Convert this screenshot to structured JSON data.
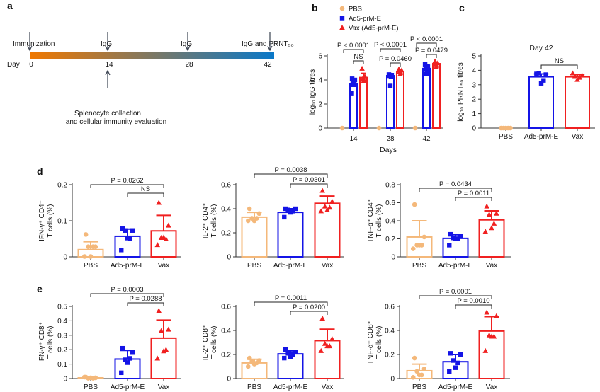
{
  "panel_letters": [
    "a",
    "b",
    "c",
    "d",
    "e"
  ],
  "colors": {
    "PBS": "#f4b87a",
    "Ad5-prM-E": "#1414e6",
    "Vax": "#f02020",
    "timeline_start": "#f07800",
    "timeline_end": "#0a78c8"
  },
  "timeline": {
    "day_label": "Day",
    "days": [
      "0",
      "14",
      "28",
      "42"
    ],
    "top_events": [
      "Immunization",
      "IgG",
      "IgG",
      "IgG and PRNT₅₀"
    ],
    "bottom_event": [
      "Splenocyte collection",
      "and cellular immunity evaluation"
    ]
  },
  "chart_data": [
    {
      "panel": "b",
      "type": "bar",
      "legend": [
        "PBS",
        "Ad5-prM-E",
        "Vax (Ad5-prM-E)"
      ],
      "legend_placement": "top",
      "categories": [
        "14",
        "28",
        "42"
      ],
      "xlabel": "Days",
      "ylabel": "log₁₀ IgG titres",
      "ylim": [
        0,
        6
      ],
      "yticks": [
        "0",
        "2",
        "4",
        "6"
      ],
      "series": [
        {
          "name": "PBS",
          "marker": "circle",
          "means": [
            0,
            0,
            0
          ],
          "sd": [
            0,
            0,
            0
          ],
          "points": [
            [
              0,
              0,
              0,
              0,
              0
            ],
            [
              0,
              0,
              0,
              0,
              0
            ],
            [
              0,
              0,
              0,
              0,
              0
            ]
          ]
        },
        {
          "name": "Ad5-prM-E",
          "marker": "square",
          "means": [
            3.7,
            4.35,
            4.95
          ],
          "sd": [
            0.35,
            0.1,
            0.3
          ],
          "points": [
            [
              4.1,
              4.0,
              3.9,
              3.8,
              3.6,
              2.9
            ],
            [
              4.45,
              4.4,
              4.35,
              4.3,
              3.5
            ],
            [
              5.3,
              5.1,
              4.9,
              4.7,
              4.5
            ]
          ]
        },
        {
          "name": "Vax (Ad5-prM-E)",
          "marker": "triangle",
          "means": [
            4.2,
            4.7,
            5.35
          ],
          "sd": [
            0.35,
            0.15,
            0.15
          ],
          "points": [
            [
              4.95,
              4.3,
              4.1,
              4.0,
              3.9
            ],
            [
              4.9,
              4.8,
              4.7,
              4.6,
              4.5
            ],
            [
              5.55,
              5.4,
              5.3,
              5.2,
              5.1
            ]
          ]
        }
      ],
      "significance": [
        {
          "group": 0,
          "from": 0,
          "to": 2,
          "label": "P < 0.0001"
        },
        {
          "group": 0,
          "from": 1,
          "to": 2,
          "label": "NS"
        },
        {
          "group": 1,
          "from": 0,
          "to": 2,
          "label": "P < 0.0001"
        },
        {
          "group": 1,
          "from": 1,
          "to": 2,
          "label": "P = 0.0460"
        },
        {
          "group": 2,
          "from": 0,
          "to": 2,
          "label": "P < 0.0001"
        },
        {
          "group": 2,
          "from": 1,
          "to": 2,
          "label": "P = 0.0479"
        }
      ]
    },
    {
      "panel": "c",
      "type": "bar",
      "title": "Day 42",
      "categories": [
        "PBS",
        "Ad5-prM-E",
        "Vax"
      ],
      "ylabel": "log₁₀ PRNT₅₀ titres",
      "ylim": [
        0,
        5
      ],
      "yticks": [
        "0",
        "1",
        "2",
        "3",
        "4",
        "5"
      ],
      "means": [
        0,
        3.55,
        3.55
      ],
      "sd": [
        0,
        0.2,
        0.15
      ],
      "points": [
        [
          0,
          0,
          0,
          0,
          0
        ],
        [
          3.75,
          3.7,
          3.8,
          3.3,
          3.1
        ],
        [
          3.8,
          3.65,
          3.6,
          3.5,
          3.35
        ]
      ],
      "significance": [
        {
          "from": 1,
          "to": 2,
          "label": "NS"
        }
      ]
    },
    {
      "panel": "d",
      "type": "bar",
      "categories": [
        "PBS",
        "Ad5-prM-E",
        "Vax"
      ],
      "ylabel": [
        "IFN-γ⁺ CD4⁺",
        "T cells (%)"
      ],
      "ylim": [
        0,
        0.2
      ],
      "yticks": [
        "0",
        "0.1",
        "0.2"
      ],
      "means": [
        0.02,
        0.057,
        0.072
      ],
      "sd": [
        0.022,
        0.02,
        0.043
      ],
      "points": [
        [
          0.062,
          0.028,
          0.028,
          0.028,
          0.001,
          0.001
        ],
        [
          0.078,
          0.073,
          0.073,
          0.05,
          0.052,
          0.019
        ],
        [
          0.15,
          0.087,
          0.053,
          0.049,
          0.054,
          0.033
        ]
      ],
      "significance": [
        {
          "from": 0,
          "to": 2,
          "label": "P = 0.0262"
        },
        {
          "from": 1,
          "to": 2,
          "label": "NS"
        }
      ]
    },
    {
      "panel": "d",
      "type": "bar",
      "categories": [
        "PBS",
        "Ad5-prM-E",
        "Vax"
      ],
      "ylabel": [
        "IL-2⁺ CD4⁺",
        "T cells (%)"
      ],
      "ylim": [
        0,
        0.6
      ],
      "yticks": [
        "0",
        "0.2",
        "0.4",
        "0.6"
      ],
      "means": [
        0.33,
        0.37,
        0.445
      ],
      "sd": [
        0.04,
        0.03,
        0.06
      ],
      "points": [
        [
          0.4,
          0.36,
          0.32,
          0.32,
          0.3,
          0.3
        ],
        [
          0.4,
          0.4,
          0.39,
          0.38,
          0.37,
          0.33
        ],
        [
          0.55,
          0.46,
          0.42,
          0.41,
          0.39,
          0.38
        ]
      ],
      "significance": [
        {
          "from": 0,
          "to": 2,
          "label": "P = 0.0038"
        },
        {
          "from": 1,
          "to": 2,
          "label": "P = 0.0301"
        }
      ]
    },
    {
      "panel": "d",
      "type": "bar",
      "categories": [
        "PBS",
        "Ad5-prM-E",
        "Vax"
      ],
      "ylabel": [
        "TNF-α⁺ CD4⁺",
        "T cells (%)"
      ],
      "ylim": [
        0,
        0.8
      ],
      "yticks": [
        "0",
        "0.2",
        "0.4",
        "0.6",
        "0.8"
      ],
      "means": [
        0.22,
        0.205,
        0.41
      ],
      "sd": [
        0.18,
        0.04,
        0.1
      ],
      "points": [
        [
          0.58,
          0.22,
          0.13,
          0.13,
          0.13,
          0.09
        ],
        [
          0.25,
          0.23,
          0.21,
          0.2,
          0.2,
          0.13
        ],
        [
          0.56,
          0.48,
          0.47,
          0.37,
          0.32,
          0.28
        ]
      ],
      "significance": [
        {
          "from": 0,
          "to": 2,
          "label": "P = 0.0434"
        },
        {
          "from": 1,
          "to": 2,
          "label": "P = 0.0011"
        }
      ]
    },
    {
      "panel": "e",
      "type": "bar",
      "categories": [
        "PBS",
        "Ad5-prM-E",
        "Vax"
      ],
      "ylabel": [
        "IFN-γ⁺ CD8⁺",
        "T cells (%)"
      ],
      "ylim": [
        0,
        0.5
      ],
      "yticks": [
        "0",
        "0.1",
        "0.2",
        "0.3",
        "0.4",
        "0.5"
      ],
      "means": [
        0.005,
        0.135,
        0.28
      ],
      "sd": [
        0.003,
        0.06,
        0.125
      ],
      "points": [
        [
          0.01,
          0.005,
          0.002,
          0.002,
          0.005,
          0.01
        ],
        [
          0.21,
          0.18,
          0.13,
          0.14,
          0.11,
          0.04
        ],
        [
          0.47,
          0.34,
          0.33,
          0.2,
          0.19,
          0.14
        ]
      ],
      "significance": [
        {
          "from": 0,
          "to": 2,
          "label": "P = 0.0003"
        },
        {
          "from": 1,
          "to": 2,
          "label": "P = 0.0288"
        }
      ]
    },
    {
      "panel": "e",
      "type": "bar",
      "categories": [
        "PBS",
        "Ad5-prM-E",
        "Vax"
      ],
      "ylabel": [
        "IL-2⁺ CD8⁺",
        "T cells (%)"
      ],
      "ylim": [
        0,
        0.6
      ],
      "yticks": [
        "0",
        "0.2",
        "0.4",
        "0.6"
      ],
      "means": [
        0.13,
        0.205,
        0.315
      ],
      "sd": [
        0.03,
        0.025,
        0.095
      ],
      "points": [
        [
          0.17,
          0.15,
          0.14,
          0.13,
          0.12,
          0.1
        ],
        [
          0.24,
          0.22,
          0.21,
          0.2,
          0.18,
          0.17
        ],
        [
          0.5,
          0.33,
          0.29,
          0.27,
          0.27,
          0.23
        ]
      ],
      "significance": [
        {
          "from": 0,
          "to": 2,
          "label": "P = 0.0011"
        },
        {
          "from": 1,
          "to": 2,
          "label": "P = 0.0200"
        }
      ]
    },
    {
      "panel": "e",
      "type": "bar",
      "categories": [
        "PBS",
        "Ad5-prM-E",
        "Vax"
      ],
      "ylabel": [
        "TNF-α⁺ CD8⁺",
        "T cells (%)"
      ],
      "ylim": [
        0,
        0.6
      ],
      "yticks": [
        "0",
        "0.2",
        "0.4",
        "0.6"
      ],
      "means": [
        0.065,
        0.14,
        0.395
      ],
      "sd": [
        0.055,
        0.06,
        0.12
      ],
      "points": [
        [
          0.17,
          0.08,
          0.06,
          0.03,
          0.03,
          0.01
        ],
        [
          0.21,
          0.2,
          0.15,
          0.13,
          0.09,
          0.06
        ],
        [
          0.55,
          0.52,
          0.36,
          0.35,
          0.35,
          0.23
        ]
      ],
      "significance": [
        {
          "from": 0,
          "to": 2,
          "label": "P = 0.0001"
        },
        {
          "from": 1,
          "to": 2,
          "label": "P = 0.0010"
        }
      ]
    }
  ]
}
